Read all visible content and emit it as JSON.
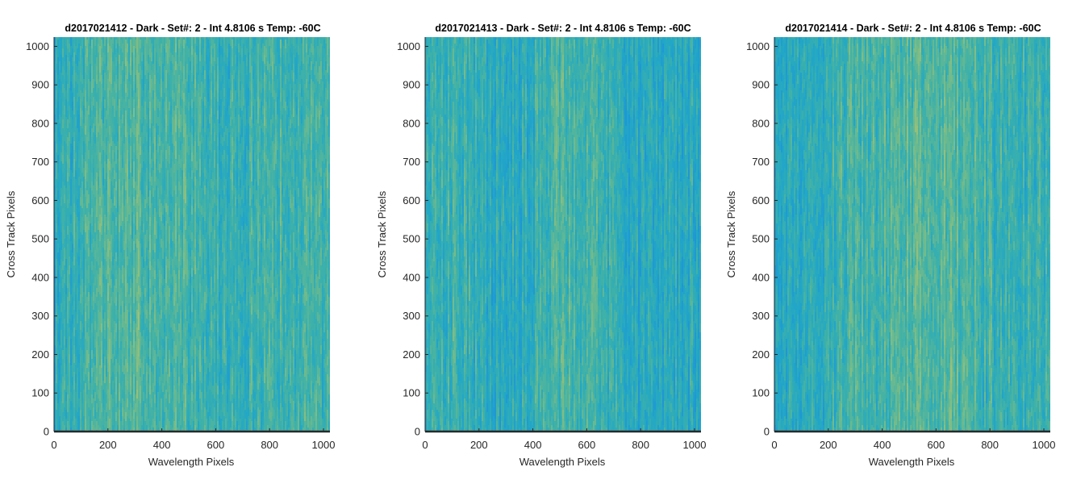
{
  "chart_data": [
    {
      "type": "heatmap",
      "title": "d2017021412 - Dark - Set#: 2 - Int 4.8106 s Temp: -60C",
      "xlabel": "Wavelength Pixels",
      "ylabel": "Cross Track Pixels",
      "xlim": [
        0,
        1024
      ],
      "ylim": [
        0,
        1024
      ],
      "xticks": [
        0,
        200,
        400,
        600,
        800,
        1000
      ],
      "yticks": [
        0,
        100,
        200,
        300,
        400,
        500,
        600,
        700,
        800,
        900,
        1000
      ],
      "colormap": [
        "#1e96d6",
        "#22a7c6",
        "#3fb1a8",
        "#74bb8a",
        "#a8c172"
      ],
      "column_profile": {
        "x": [
          0,
          100,
          200,
          300,
          400,
          500,
          600,
          700,
          800,
          900,
          1000
        ],
        "level": [
          0.28,
          0.46,
          0.56,
          0.6,
          0.6,
          0.52,
          0.42,
          0.45,
          0.5,
          0.48,
          0.55
        ]
      }
    },
    {
      "type": "heatmap",
      "title": "d2017021413 - Dark - Set#: 2 - Int 4.8106 s Temp: -60C",
      "xlabel": "Wavelength Pixels",
      "ylabel": "Cross Track Pixels",
      "xlim": [
        0,
        1024
      ],
      "ylim": [
        0,
        1024
      ],
      "xticks": [
        0,
        200,
        400,
        600,
        800,
        1000
      ],
      "yticks": [
        0,
        100,
        200,
        300,
        400,
        500,
        600,
        700,
        800,
        900,
        1000
      ],
      "colormap": [
        "#1e96d6",
        "#22a7c6",
        "#3fb1a8",
        "#74bb8a",
        "#a8c172"
      ],
      "column_profile": {
        "x": [
          0,
          100,
          200,
          300,
          400,
          500,
          600,
          700,
          800,
          900,
          1000
        ],
        "level": [
          0.42,
          0.44,
          0.38,
          0.3,
          0.36,
          0.55,
          0.48,
          0.36,
          0.3,
          0.28,
          0.32
        ]
      }
    },
    {
      "type": "heatmap",
      "title": "d2017021414 - Dark - Set#: 2 - Int 4.8106 s Temp: -60C",
      "xlabel": "Wavelength Pixels",
      "ylabel": "Cross Track Pixels",
      "xlim": [
        0,
        1024
      ],
      "ylim": [
        0,
        1024
      ],
      "xticks": [
        0,
        200,
        400,
        600,
        800,
        1000
      ],
      "yticks": [
        0,
        100,
        200,
        300,
        400,
        500,
        600,
        700,
        800,
        900,
        1000
      ],
      "colormap": [
        "#1e96d6",
        "#22a7c6",
        "#3fb1a8",
        "#74bb8a",
        "#a8c172"
      ],
      "column_profile": {
        "x": [
          0,
          100,
          200,
          300,
          400,
          500,
          600,
          700,
          800,
          900,
          1000
        ],
        "level": [
          0.3,
          0.36,
          0.42,
          0.5,
          0.56,
          0.6,
          0.62,
          0.56,
          0.48,
          0.42,
          0.4
        ]
      }
    }
  ]
}
